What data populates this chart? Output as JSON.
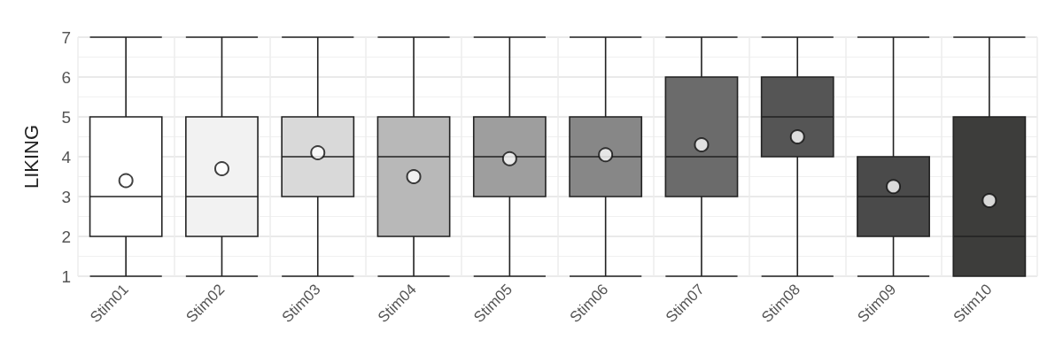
{
  "chart_data": {
    "type": "box",
    "ylabel": "LIKING",
    "categories": [
      "Stim01",
      "Stim02",
      "Stim03",
      "Stim04",
      "Stim05",
      "Stim06",
      "Stim07",
      "Stim08",
      "Stim09",
      "Stim10"
    ],
    "boxes": [
      {
        "low": 1,
        "q1": 2,
        "median": 3,
        "q3": 5,
        "high": 7,
        "mean": 3.4
      },
      {
        "low": 1,
        "q1": 2,
        "median": 3,
        "q3": 5,
        "high": 7,
        "mean": 3.7
      },
      {
        "low": 1,
        "q1": 3,
        "median": 4,
        "q3": 5,
        "high": 7,
        "mean": 4.1
      },
      {
        "low": 1,
        "q1": 2,
        "median": 4,
        "q3": 5,
        "high": 7,
        "mean": 3.5
      },
      {
        "low": 1,
        "q1": 3,
        "median": 4,
        "q3": 5,
        "high": 7,
        "mean": 3.95
      },
      {
        "low": 1,
        "q1": 3,
        "median": 4,
        "q3": 5,
        "high": 7,
        "mean": 4.05
      },
      {
        "low": 1,
        "q1": 3,
        "median": 4,
        "q3": 6,
        "high": 7,
        "mean": 4.3
      },
      {
        "low": 1,
        "q1": 4,
        "median": 5,
        "q3": 6,
        "high": 7,
        "mean": 4.5
      },
      {
        "low": 1,
        "q1": 2,
        "median": 3,
        "q3": 4,
        "high": 7,
        "mean": 3.25
      },
      {
        "low": 1,
        "q1": 1,
        "median": 2,
        "q3": 5,
        "high": 7,
        "mean": 2.9
      }
    ],
    "colors": [
      "#ffffff",
      "#f2f2f2",
      "#d9d9d9",
      "#b8b8b8",
      "#9e9e9e",
      "#878787",
      "#6b6b6b",
      "#555555",
      "#4a4a4a",
      "#3d3d3b"
    ],
    "ylim": [
      1,
      7
    ],
    "yticks": [
      1,
      2,
      3,
      4,
      5,
      6,
      7
    ],
    "grid": true,
    "marker": "circle"
  }
}
